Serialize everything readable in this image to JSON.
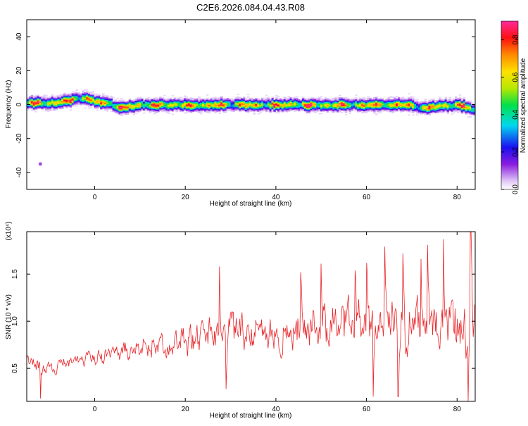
{
  "title": "C2E6.2026.084.04.43.R08",
  "colors": {
    "snr_line": "#e8262a",
    "axis": "#000000"
  },
  "chart_data": [
    {
      "type": "heatmap",
      "xlabel": "Height of straight line (km)",
      "ylabel": "Frequency (Hz)",
      "xlim": [
        -15,
        84
      ],
      "ylim": [
        -50,
        50
      ],
      "xticks": [
        0,
        20,
        40,
        60,
        80
      ],
      "yticks": [
        -40,
        -20,
        0,
        20,
        40
      ],
      "colorbar": {
        "label": "Normalized spectral amplitude",
        "range": [
          0,
          0.9
        ],
        "ticks": [
          0.0,
          0.2,
          0.4,
          0.6,
          0.8
        ],
        "tick_labels": [
          "0.0",
          "0.2",
          "0.4",
          "0.6",
          "0.8"
        ]
      },
      "ridge": {
        "x": [
          -15,
          -10,
          -5,
          -3,
          0,
          3,
          5,
          10,
          20,
          30,
          40,
          50,
          60,
          70,
          72,
          75,
          80,
          84
        ],
        "freq": [
          1,
          1,
          3,
          4,
          2,
          1,
          -2,
          0,
          0,
          0,
          0,
          0,
          0,
          0,
          -2,
          -1,
          0,
          -3
        ],
        "peak_amplitude": 0.9
      },
      "outlier": {
        "x": -12,
        "freq": -35
      }
    },
    {
      "type": "line",
      "xlabel": "Height of straight line (km)",
      "ylabel": "SNR (10 * v/v)",
      "scale_label": "(x10⁴)",
      "xlim": [
        -15,
        84
      ],
      "ylim": [
        0.15,
        1.95
      ],
      "xticks": [
        0,
        20,
        40,
        60,
        80
      ],
      "yticks": [
        0.5,
        1.0,
        1.5
      ],
      "ytick_labels": [
        "0.5",
        "1.0",
        "1.5"
      ],
      "series": [
        {
          "envelope_x": [
            -15,
            -10,
            -5,
            0,
            5,
            10,
            15,
            20,
            25,
            30,
            35,
            40,
            45,
            50,
            55,
            60,
            65,
            70,
            75,
            80,
            84
          ],
          "envelope_mean": [
            0.55,
            0.52,
            0.55,
            0.6,
            0.7,
            0.68,
            0.78,
            0.8,
            0.88,
            0.9,
            0.9,
            0.92,
            0.92,
            0.95,
            0.95,
            0.95,
            0.98,
            0.95,
            0.95,
            0.92,
            0.85
          ],
          "envelope_spread": [
            0.15,
            0.15,
            0.12,
            0.15,
            0.2,
            0.2,
            0.25,
            0.3,
            0.35,
            0.4,
            0.35,
            0.4,
            0.4,
            0.45,
            0.45,
            0.45,
            0.5,
            0.5,
            0.5,
            0.55,
            0.6
          ],
          "peaks": [
            {
              "x": 27.5,
              "y": 1.58
            },
            {
              "x": 45.5,
              "y": 1.52
            },
            {
              "x": 50,
              "y": 1.61
            },
            {
              "x": 57.5,
              "y": 1.54
            },
            {
              "x": 60,
              "y": 1.62
            },
            {
              "x": 64,
              "y": 1.79
            },
            {
              "x": 68,
              "y": 1.72
            },
            {
              "x": 72,
              "y": 1.66
            },
            {
              "x": 73.5,
              "y": 1.81
            },
            {
              "x": 77,
              "y": 1.87
            },
            {
              "x": 83,
              "y": 1.95
            }
          ],
          "troughs": [
            {
              "x": -12,
              "y": 0.18
            },
            {
              "x": 29,
              "y": 0.28
            },
            {
              "x": 61.5,
              "y": 0.2
            },
            {
              "x": 67,
              "y": 0.2
            },
            {
              "x": 82.5,
              "y": 0.15
            }
          ]
        }
      ]
    }
  ]
}
